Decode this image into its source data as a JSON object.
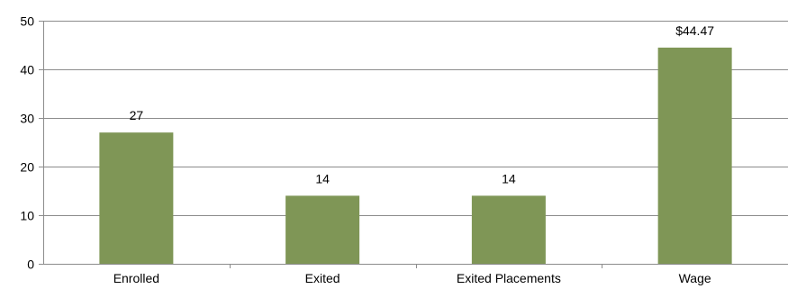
{
  "chart_data": {
    "type": "bar",
    "categories": [
      "Enrolled",
      "Exited",
      "Exited Placements",
      "Wage"
    ],
    "values": [
      27,
      14,
      14,
      44.47
    ],
    "data_labels": [
      "27",
      "14",
      "14",
      "$44.47"
    ],
    "title": "",
    "xlabel": "",
    "ylabel": "",
    "ylim": [
      0,
      50
    ],
    "yticks": [
      0,
      10,
      20,
      30,
      40,
      50
    ],
    "ytick_labels": [
      "0",
      "10",
      "20",
      "30",
      "40",
      "50"
    ],
    "grid": true,
    "legend": "none",
    "colors": {
      "bar": "#7F9656",
      "gridline": "#8C8C8C",
      "axis": "#8C8C8C",
      "text": "#000000"
    }
  }
}
